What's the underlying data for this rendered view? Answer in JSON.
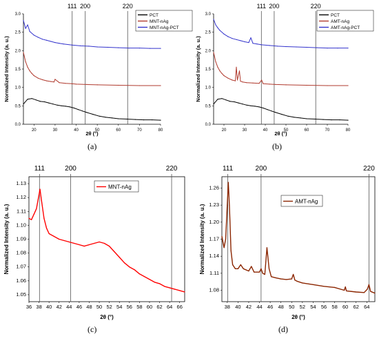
{
  "chart_data": [
    {
      "type": "line",
      "panel_label": "(a)",
      "xlabel": "2θ (°)",
      "ylabel": "Normalized Intensity (a. u.)",
      "xlim": [
        15,
        80
      ],
      "ylim": [
        0,
        3.0
      ],
      "x_ticks": [
        "20",
        "30",
        "40",
        "50",
        "60",
        "70",
        "80"
      ],
      "y_ticks": [
        "0.0",
        "0.5",
        "1.0",
        "1.5",
        "2.0",
        "2.5",
        "3.0"
      ],
      "reference_lines": [
        {
          "label": "111",
          "x": 38.1
        },
        {
          "label": "200",
          "x": 44.3
        },
        {
          "label": "220",
          "x": 64.4
        }
      ],
      "legend": {
        "position": "top-right",
        "entries": [
          "PCT",
          "MNT-nAg",
          "MNT-nAg-PCT"
        ]
      },
      "series": [
        {
          "name": "PCT",
          "color": "#000000",
          "x": [
            15,
            17,
            19,
            21,
            23,
            25,
            27,
            29,
            31,
            33,
            35,
            37,
            39,
            41,
            43,
            45,
            48,
            51,
            54,
            57,
            60,
            64,
            68,
            72,
            76,
            80
          ],
          "y": [
            0.55,
            0.68,
            0.7,
            0.66,
            0.62,
            0.61,
            0.58,
            0.55,
            0.52,
            0.5,
            0.49,
            0.47,
            0.44,
            0.4,
            0.36,
            0.32,
            0.27,
            0.22,
            0.19,
            0.17,
            0.15,
            0.14,
            0.13,
            0.12,
            0.12,
            0.11
          ]
        },
        {
          "name": "MNT-nAg",
          "color": "#b03a2e",
          "x": [
            15,
            16,
            17,
            18,
            19,
            20,
            22,
            24,
            26,
            28,
            29.5,
            30,
            32,
            35,
            38,
            40,
            45,
            50,
            60,
            70,
            80
          ],
          "y": [
            1.95,
            1.7,
            1.55,
            1.45,
            1.38,
            1.32,
            1.25,
            1.21,
            1.18,
            1.16,
            1.15,
            1.22,
            1.13,
            1.11,
            1.1,
            1.09,
            1.08,
            1.07,
            1.06,
            1.05,
            1.05
          ]
        },
        {
          "name": "MNT-nAg-PCT",
          "color": "#3333cc",
          "x": [
            15,
            16,
            17,
            18,
            20,
            22,
            24,
            26,
            28,
            30,
            32,
            34,
            38,
            42,
            46,
            50,
            55,
            60,
            65,
            70,
            75,
            80
          ],
          "y": [
            2.82,
            2.6,
            2.7,
            2.52,
            2.42,
            2.36,
            2.31,
            2.28,
            2.25,
            2.22,
            2.2,
            2.18,
            2.15,
            2.13,
            2.12,
            2.1,
            2.09,
            2.08,
            2.07,
            2.07,
            2.06,
            2.06
          ]
        }
      ]
    },
    {
      "type": "line",
      "panel_label": "(b)",
      "xlabel": "2θ (°)",
      "ylabel": "Normalized Intensity (a. u.)",
      "xlim": [
        15,
        80
      ],
      "ylim": [
        0,
        3.0
      ],
      "x_ticks": [
        "20",
        "30",
        "40",
        "50",
        "60",
        "70",
        "80"
      ],
      "y_ticks": [
        "0.0",
        "0.5",
        "1.0",
        "1.5",
        "2.0",
        "2.5",
        "3.0"
      ],
      "reference_lines": [
        {
          "label": "111",
          "x": 38.1
        },
        {
          "label": "200",
          "x": 44.3
        },
        {
          "label": "220",
          "x": 64.4
        }
      ],
      "legend": {
        "position": "top-right",
        "entries": [
          "PCT",
          "AMT-nAg",
          "AMT-nAg-PCT"
        ]
      },
      "series": [
        {
          "name": "PCT",
          "color": "#000000",
          "x": [
            15,
            17,
            19,
            21,
            23,
            25,
            27,
            29,
            31,
            33,
            35,
            37,
            39,
            41,
            43,
            45,
            48,
            51,
            54,
            57,
            60,
            64,
            68,
            72,
            76,
            80
          ],
          "y": [
            0.55,
            0.68,
            0.7,
            0.66,
            0.62,
            0.61,
            0.58,
            0.55,
            0.52,
            0.5,
            0.49,
            0.47,
            0.44,
            0.4,
            0.36,
            0.32,
            0.27,
            0.22,
            0.19,
            0.17,
            0.15,
            0.14,
            0.13,
            0.12,
            0.12,
            0.11
          ]
        },
        {
          "name": "AMT-nAg",
          "color": "#b03a2e",
          "x": [
            15,
            16,
            17,
            18,
            19,
            20,
            22,
            24,
            25.5,
            26,
            26.5,
            27.5,
            28,
            29,
            31,
            34,
            37,
            38.2,
            39,
            42,
            45,
            50,
            60,
            70,
            80
          ],
          "y": [
            1.95,
            1.7,
            1.55,
            1.45,
            1.38,
            1.32,
            1.25,
            1.2,
            1.18,
            1.55,
            1.2,
            1.45,
            1.17,
            1.15,
            1.13,
            1.12,
            1.11,
            1.2,
            1.1,
            1.09,
            1.08,
            1.07,
            1.06,
            1.05,
            1.05
          ]
        },
        {
          "name": "AMT-nAg-PCT",
          "color": "#3333cc",
          "x": [
            15,
            16,
            17,
            18,
            20,
            22,
            24,
            26,
            28,
            30,
            32,
            33,
            34,
            36,
            38,
            42,
            46,
            50,
            55,
            60,
            65,
            70,
            75,
            80
          ],
          "y": [
            2.85,
            2.7,
            2.62,
            2.55,
            2.45,
            2.38,
            2.33,
            2.3,
            2.27,
            2.24,
            2.22,
            2.35,
            2.2,
            2.18,
            2.16,
            2.14,
            2.12,
            2.11,
            2.1,
            2.09,
            2.08,
            2.07,
            2.07,
            2.07
          ]
        }
      ]
    },
    {
      "type": "line",
      "panel_label": "(c)",
      "xlabel": "2θ (°)",
      "ylabel": "Normalized Intensity (a. u.)",
      "xlim": [
        36,
        67
      ],
      "ylim": [
        1.045,
        1.135
      ],
      "x_ticks": [
        "36",
        "38",
        "40",
        "42",
        "44",
        "46",
        "48",
        "50",
        "52",
        "54",
        "56",
        "58",
        "60",
        "62",
        "64",
        "66"
      ],
      "y_ticks": [
        "1.05",
        "1.06",
        "1.07",
        "1.08",
        "1.09",
        "1.10",
        "1.11",
        "1.12",
        "1.13"
      ],
      "reference_lines": [
        {
          "label": "111",
          "x": 38.1
        },
        {
          "label": "200",
          "x": 44.3
        },
        {
          "label": "220",
          "x": 64.4
        }
      ],
      "legend": {
        "position": "top-right",
        "entries": [
          "MNT-nAg"
        ]
      },
      "series": [
        {
          "name": "MNT-nAg",
          "color": "#ff0000",
          "x": [
            36,
            36.5,
            37,
            37.5,
            38,
            38.2,
            38.5,
            39,
            39.5,
            40,
            41,
            42,
            43,
            44,
            45,
            46,
            47,
            48,
            49,
            50,
            51,
            52,
            53,
            54,
            55,
            56,
            57,
            58,
            59,
            60,
            61,
            62,
            63,
            64,
            65,
            66,
            67
          ],
          "y": [
            1.105,
            1.104,
            1.108,
            1.112,
            1.122,
            1.126,
            1.118,
            1.105,
            1.098,
            1.094,
            1.092,
            1.09,
            1.089,
            1.088,
            1.087,
            1.086,
            1.085,
            1.086,
            1.087,
            1.088,
            1.087,
            1.085,
            1.081,
            1.077,
            1.073,
            1.07,
            1.068,
            1.065,
            1.063,
            1.061,
            1.059,
            1.058,
            1.056,
            1.055,
            1.054,
            1.053,
            1.052
          ]
        }
      ]
    },
    {
      "type": "line",
      "panel_label": "(d)",
      "xlabel": "2θ (°)",
      "ylabel": "Normalized Intensity (a. u.)",
      "xlim": [
        37,
        65.5
      ],
      "ylim": [
        1.06,
        1.28
      ],
      "x_ticks": [
        "38",
        "40",
        "42",
        "44",
        "46",
        "48",
        "50",
        "52",
        "54",
        "56",
        "58",
        "60",
        "62",
        "64"
      ],
      "y_ticks": [
        "1.08",
        "1.11",
        "1.14",
        "1.17",
        "1.20",
        "1.23",
        "1.26"
      ],
      "reference_lines": [
        {
          "label": "111",
          "x": 38.1
        },
        {
          "label": "200",
          "x": 44.3
        },
        {
          "label": "220",
          "x": 64.4
        }
      ],
      "legend": {
        "position": "top-right",
        "entries": [
          "AMT-nAg"
        ]
      },
      "series": [
        {
          "name": "AMT-nAg",
          "color": "#8b2500",
          "x": [
            37,
            37.4,
            37.7,
            38.0,
            38.2,
            38.4,
            38.7,
            39.0,
            39.5,
            40,
            40.5,
            41,
            42,
            42.5,
            43,
            44,
            44.3,
            44.6,
            45,
            45.4,
            45.8,
            46.2,
            47,
            48,
            49,
            50,
            50.3,
            50.6,
            51,
            52,
            54,
            56,
            58,
            59.8,
            60,
            60.2,
            62,
            63.5,
            64.1,
            64.4,
            64.7,
            65.5
          ],
          "y": [
            1.175,
            1.155,
            1.17,
            1.23,
            1.27,
            1.23,
            1.15,
            1.125,
            1.118,
            1.118,
            1.125,
            1.118,
            1.114,
            1.122,
            1.112,
            1.112,
            1.118,
            1.11,
            1.108,
            1.155,
            1.118,
            1.104,
            1.102,
            1.1,
            1.099,
            1.1,
            1.108,
            1.098,
            1.096,
            1.093,
            1.09,
            1.087,
            1.085,
            1.08,
            1.086,
            1.079,
            1.077,
            1.076,
            1.082,
            1.09,
            1.078,
            1.075
          ]
        }
      ]
    }
  ]
}
